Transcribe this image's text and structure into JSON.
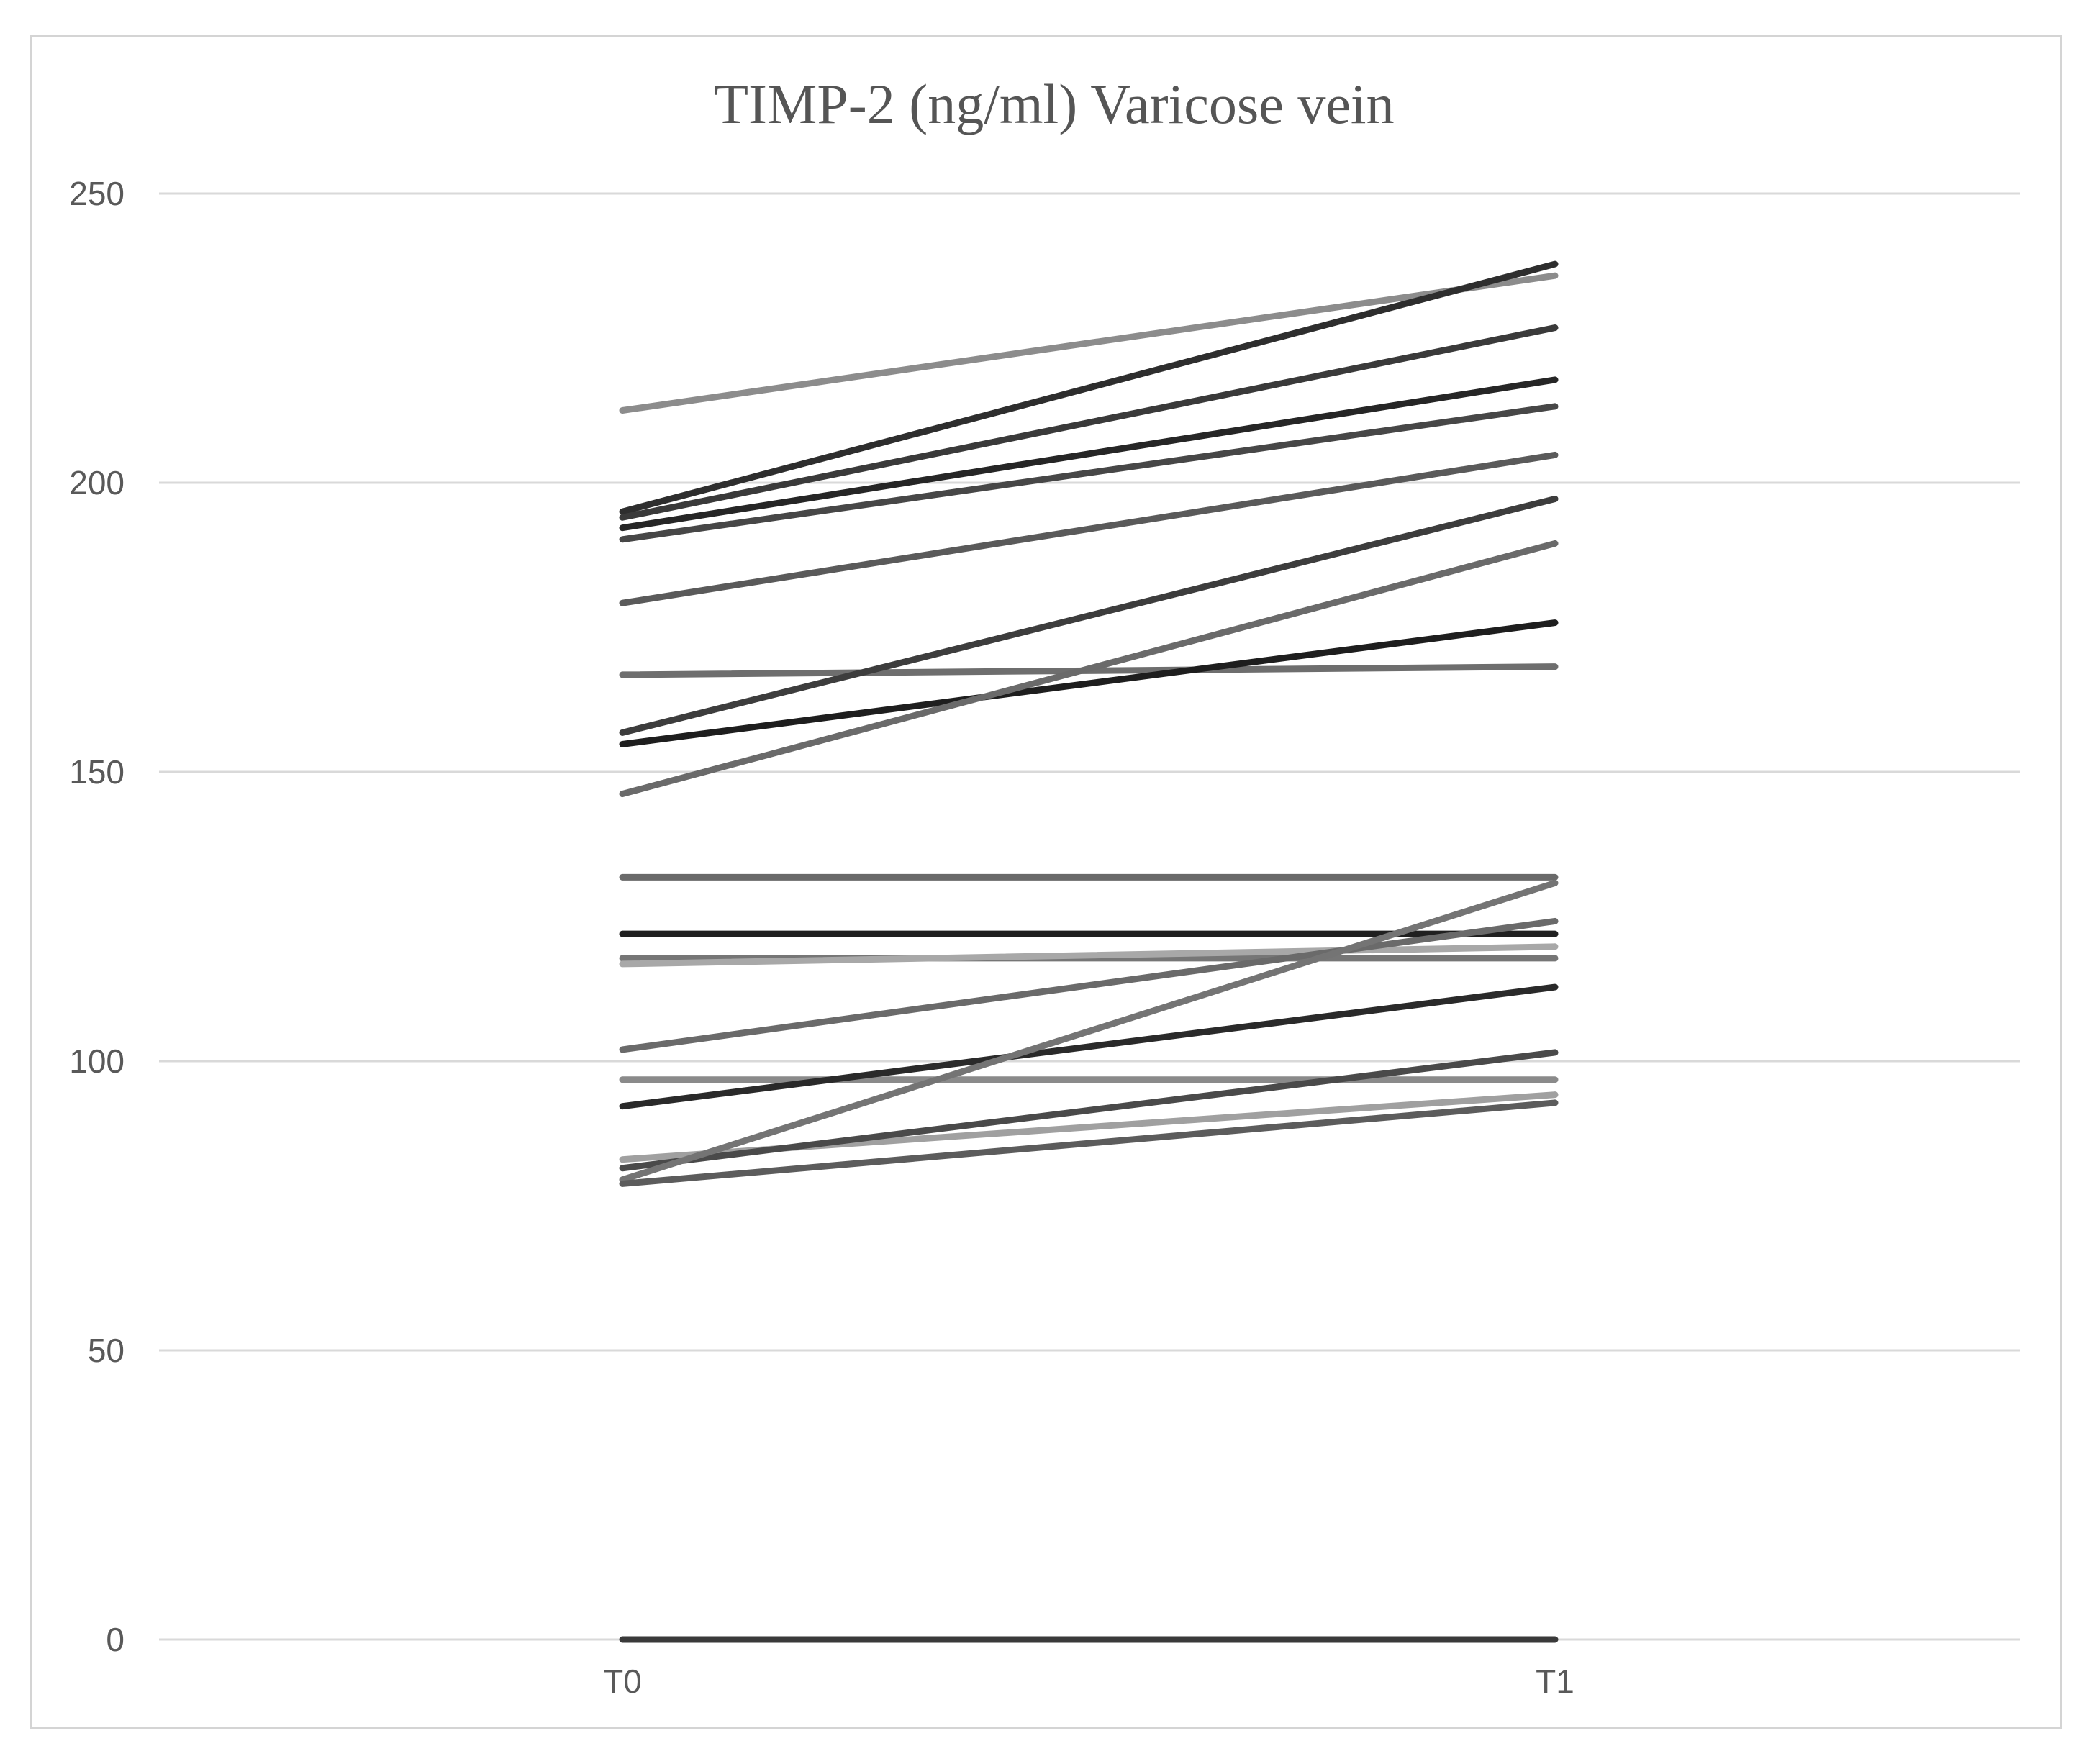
{
  "chart_data": {
    "type": "line",
    "title": "TIMP-2 (ng/ml) Varicose vein",
    "xlabel": "",
    "ylabel": "",
    "categories": [
      "T0",
      "T1"
    ],
    "ylim": [
      0,
      250
    ],
    "yticks": [
      0,
      50,
      100,
      150,
      200,
      250
    ],
    "grid": true,
    "legend": "none",
    "series": [
      {
        "values": [
          212.5,
          235.8
        ],
        "color": "#8c8c8c"
      },
      {
        "values": [
          195.0,
          237.8
        ],
        "color": "#2e2e2e"
      },
      {
        "values": [
          194.0,
          226.8
        ],
        "color": "#3a3a3a"
      },
      {
        "values": [
          192.2,
          217.8
        ],
        "color": "#262626"
      },
      {
        "values": [
          190.2,
          213.2
        ],
        "color": "#474747"
      },
      {
        "values": [
          179.2,
          204.8
        ],
        "color": "#5a5a5a"
      },
      {
        "values": [
          166.8,
          168.2
        ],
        "color": "#6e6e6e"
      },
      {
        "values": [
          156.8,
          197.2
        ],
        "color": "#3d3d3d"
      },
      {
        "values": [
          154.8,
          175.8
        ],
        "color": "#1e1e1e"
      },
      {
        "values": [
          146.2,
          189.5
        ],
        "color": "#6a6a6a"
      },
      {
        "values": [
          131.8,
          131.8
        ],
        "color": "#6a6a6a"
      },
      {
        "values": [
          122.0,
          122.0
        ],
        "color": "#202020"
      },
      {
        "values": [
          117.8,
          117.8
        ],
        "color": "#767676"
      },
      {
        "values": [
          116.8,
          119.8
        ],
        "color": "#a8a8a8"
      },
      {
        "values": [
          102.0,
          124.2
        ],
        "color": "#6a6a6a"
      },
      {
        "values": [
          96.8,
          96.8
        ],
        "color": "#8a8a8a"
      },
      {
        "values": [
          92.2,
          112.8
        ],
        "color": "#2a2a2a"
      },
      {
        "values": [
          83.0,
          94.2
        ],
        "color": "#a0a0a0"
      },
      {
        "values": [
          81.5,
          101.5
        ],
        "color": "#4a4a4a"
      },
      {
        "values": [
          79.5,
          130.8
        ],
        "color": "#747474"
      },
      {
        "values": [
          78.8,
          92.8
        ],
        "color": "#5c5c5c"
      },
      {
        "values": [
          0,
          0
        ],
        "color": "#3a3a3a"
      }
    ]
  }
}
